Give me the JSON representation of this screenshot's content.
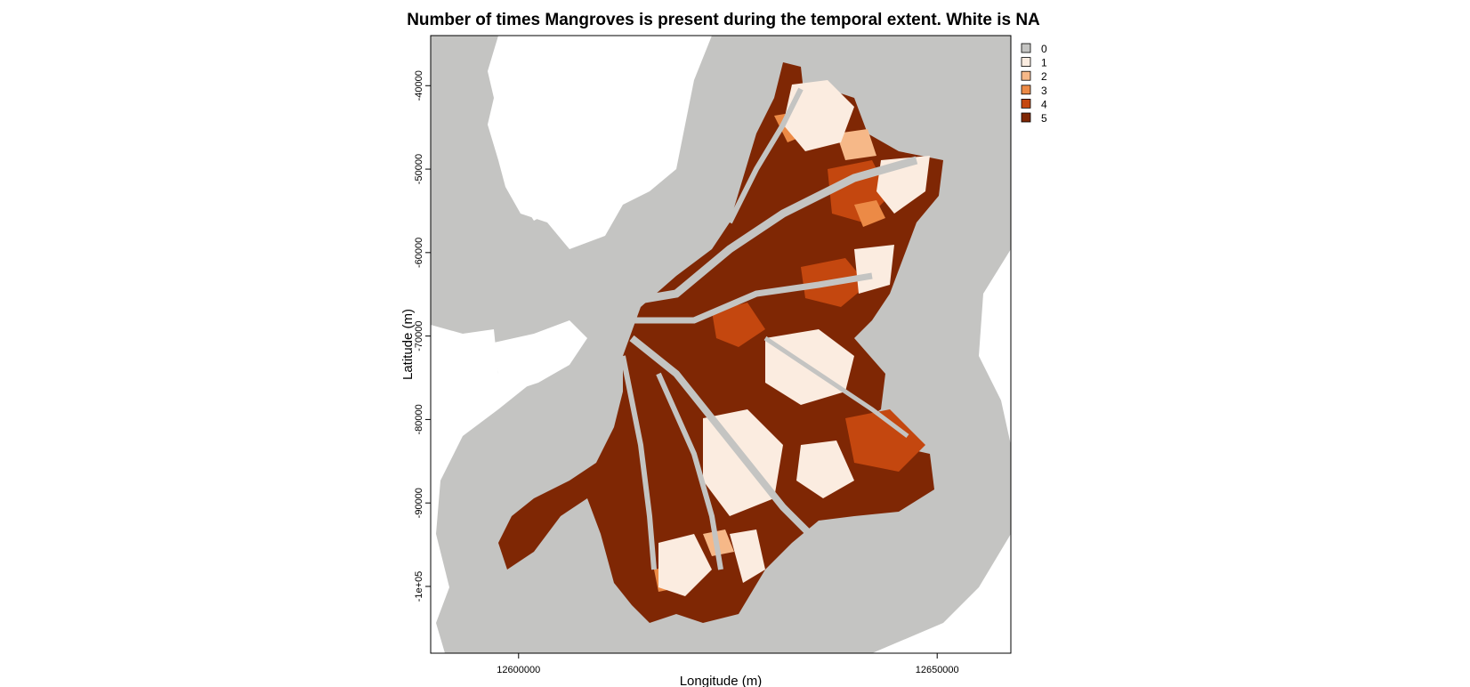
{
  "chart_data": {
    "type": "heatmap",
    "title": "Number of times Mangroves is present during the temporal extent. White is NA",
    "xlabel": "Longitude (m)",
    "ylabel": "Latitude (m)",
    "x_ticks": [
      {
        "value": 12600000,
        "label": "12600000"
      },
      {
        "value": 12650000,
        "label": "12650000"
      }
    ],
    "y_ticks": [
      {
        "value": -40000,
        "label": "-40000"
      },
      {
        "value": -50000,
        "label": "-50000"
      },
      {
        "value": -60000,
        "label": "-60000"
      },
      {
        "value": -70000,
        "label": "-70000"
      },
      {
        "value": -80000,
        "label": "-80000"
      },
      {
        "value": -90000,
        "label": "-90000"
      },
      {
        "value": -100000,
        "label": "-1e+05"
      }
    ],
    "xlim": [
      12589500,
      12658800
    ],
    "ylim": [
      -108000,
      -34000
    ],
    "legend": {
      "placement": "top-right",
      "entries": [
        {
          "label": "0",
          "color": "#c4c4c2"
        },
        {
          "label": "1",
          "color": "#fbece0"
        },
        {
          "label": "2",
          "color": "#f6b888"
        },
        {
          "label": "3",
          "color": "#ec8a46"
        },
        {
          "label": "4",
          "color": "#c4470f"
        },
        {
          "label": "5",
          "color": "#7f2704"
        }
      ]
    },
    "na_color": "#ffffff",
    "grid": false
  }
}
